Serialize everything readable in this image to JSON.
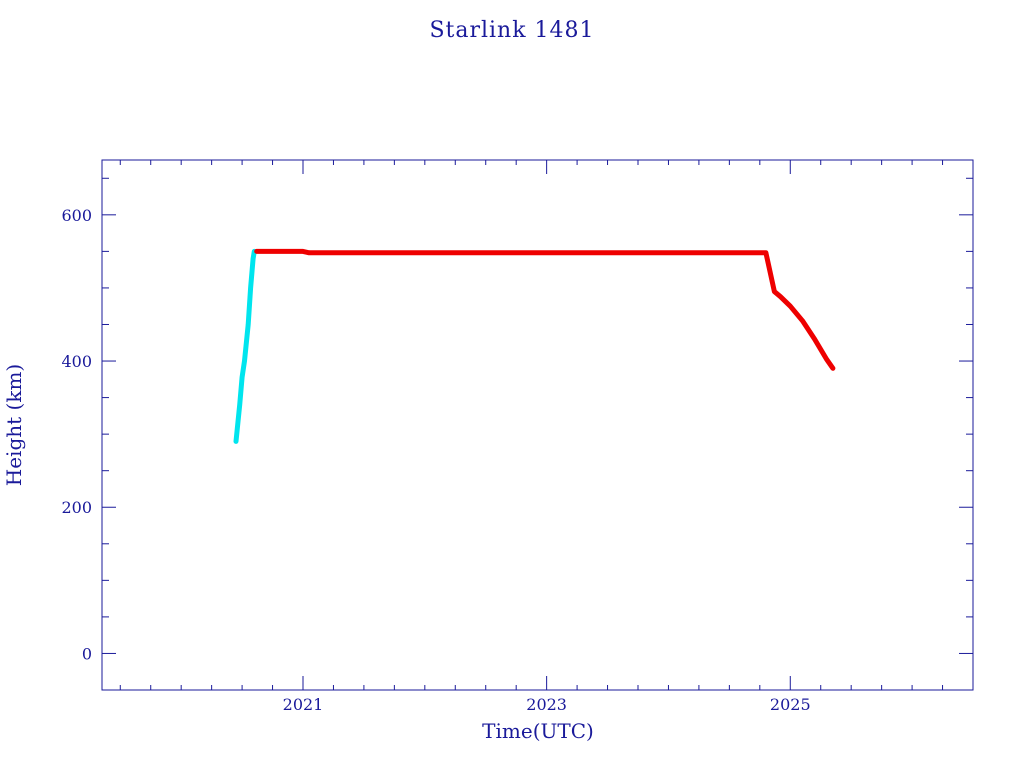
{
  "chart_data": {
    "type": "line",
    "title": "Starlink 1481",
    "xlabel": "Time(UTC)",
    "ylabel": "Height (km)",
    "xlim": [
      2019.35,
      2026.5
    ],
    "ylim": [
      -50,
      675
    ],
    "x_ticks": [
      2021,
      2023,
      2025
    ],
    "x_tick_labels": [
      "2021",
      "2023",
      "2025"
    ],
    "y_ticks": [
      0,
      200,
      400,
      600
    ],
    "y_tick_labels": [
      "0",
      "200",
      "400",
      "600"
    ],
    "grid": false,
    "colors": {
      "axis": "#1a1a9a",
      "raise": "#00e5ee",
      "operational": "#ee0000"
    },
    "series": [
      {
        "color": "#00e5ee",
        "x": [
          2020.45,
          2020.48,
          2020.5,
          2020.52,
          2020.55,
          2020.57,
          2020.59,
          2020.6
        ],
        "y": [
          290,
          340,
          378,
          400,
          450,
          500,
          540,
          550
        ]
      },
      {
        "color": "#ee0000",
        "x": [
          2020.62,
          2020.8,
          2021.0,
          2021.05,
          2021.2,
          2022.0,
          2023.0,
          2024.0,
          2024.8,
          2024.87,
          2024.92,
          2025.0,
          2025.1,
          2025.2,
          2025.3,
          2025.35
        ],
        "y": [
          550,
          550,
          550,
          548,
          548,
          548,
          548,
          548,
          548,
          495,
          488,
          475,
          455,
          430,
          402,
          390
        ]
      }
    ]
  }
}
